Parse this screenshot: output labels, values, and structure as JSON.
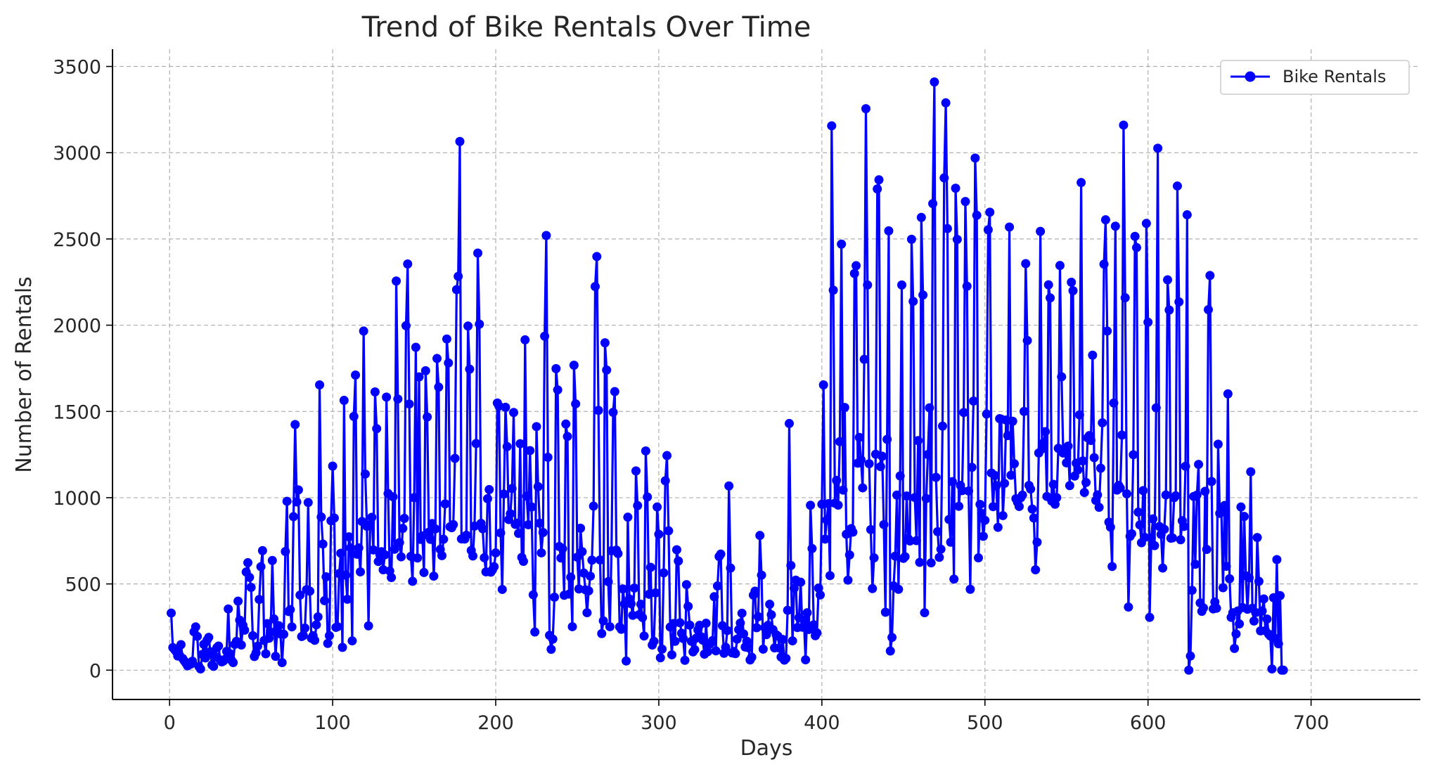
{
  "chart_data": {
    "type": "line",
    "title": "Trend of Bike Rentals Over Time",
    "xlabel": "Days",
    "ylabel": "Number of Rentals",
    "xlim": [
      -35,
      767
    ],
    "ylim": [
      -170,
      3600
    ],
    "xticks": [
      0,
      100,
      200,
      300,
      400,
      500,
      600,
      700
    ],
    "yticks": [
      0,
      500,
      1000,
      1500,
      2000,
      2500,
      3000,
      3500
    ],
    "grid": true,
    "legend_position": "top-right",
    "color": "#0000ff",
    "series": [
      {
        "name": "Bike Rentals",
        "x_start": 1,
        "x_step": 1,
        "values": [
          331,
          131,
          120,
          108,
          82,
          88,
          148,
          68,
          54,
          41,
          25,
          31,
          35,
          52,
          222,
          251,
          196,
          21,
          7,
          91,
          150,
          71,
          174,
          190,
          107,
          30,
          22,
          78,
          130,
          140,
          60,
          48,
          53,
          63,
          109,
          355,
          96,
          57,
          44,
          150,
          167,
          400,
          290,
          146,
          260,
          232,
          569,
          623,
          538,
          480,
          200,
          79,
          100,
          139,
          410,
          600,
          693,
          172,
          95,
          270,
          185,
          220,
          636,
          297,
          80,
          236,
          258,
          210,
          44,
          208,
          688,
          979,
          340,
          351,
          251,
          890,
          1424,
          975,
          1045,
          435,
          195,
          201,
          244,
          467,
          972,
          458,
          185,
          200,
          173,
          263,
          309,
          1654,
          888,
          731,
          403,
          541,
          155,
          200,
          866,
          1183,
          882,
          248,
          252,
          560,
          678,
          132,
          1564,
          551,
          411,
          773,
          709,
          170,
          1471,
          1711,
          672,
          709,
          570,
          862,
          1966,
          1137,
          834,
          257,
          844,
          886,
          697,
          1613,
          1400,
          630,
          668,
          687,
          582,
          669,
          1583,
          1024,
          575,
          537,
          1005,
          701,
          2256,
          1572,
          740,
          657,
          822,
          880,
          1997,
          2355,
          1543,
          660,
          515,
          1000,
          1872,
          650,
          1700,
          758,
          778,
          566,
          1736,
          1468,
          800,
          758,
          850,
          545,
          819,
          1807,
          1641,
          700,
          664,
          759,
          964,
          1920,
          1781,
          831,
          826,
          844,
          1228,
          2206,
          2283,
          3065,
          761,
          762,
          760,
          782,
          1995,
          1745,
          694,
          662,
          835,
          1314,
          2418,
          2006,
          851,
          820,
          652,
          570,
          994,
          1047,
          568,
          582,
          600,
          680,
          1549,
          1531,
          796,
          468,
          1021,
          1524,
          1296,
          873,
          907,
          1053,
          1494,
          845,
          852,
          793,
          1313,
          654,
          631,
          1915,
          1009,
          843,
          1273,
          946,
          437,
          221,
          1412,
          1064,
          852,
          680,
          798,
          1936,
          2520,
          1234,
          202,
          121,
          180,
          423,
          1748,
          1625,
          717,
          650,
          704,
          434,
          1427,
          1355,
          441,
          539,
          252,
          1768,
          1544,
          655,
          471,
          823,
          687,
          563,
          466,
          333,
          460,
          545,
          638,
          951,
          2224,
          2398,
          1506,
          639,
          212,
          286,
          1898,
          1740,
          513,
          252,
          692,
          1495,
          1615,
          696,
          676,
          251,
          237,
          471,
          384,
          53,
          887,
          413,
          385,
          318,
          476,
          1155,
          954,
          322,
          382,
          305,
          198,
          1271,
          1004,
          440,
          596,
          146,
          167,
          448,
          946,
          788,
          72,
          122,
          564,
          1098,
          1244,
          808,
          250,
          89,
          270,
          167,
          698,
          633,
          275,
          214,
          183,
          57,
          496,
          370,
          261,
          167,
          106,
          119,
          186,
          233,
          260,
          194,
          174,
          93,
          272,
          107,
          150,
          158,
          172,
          426,
          112,
          488,
          659,
          673,
          258,
          98,
          133,
          230,
          1068,
          592,
          100,
          108,
          96,
          180,
          235,
          273,
          330,
          210,
          134,
          168,
          130,
          59,
          75,
          435,
          458,
          246,
          310,
          781,
          551,
          122,
          247,
          206,
          260,
          382,
          321,
          235,
          129,
          205,
          198,
          128,
          76,
          178,
          58,
          68,
          347,
          1430,
          607,
          170,
          475,
          522,
          247,
          305,
          510,
          249,
          291,
          60,
          333,
          236,
          956,
          705,
          263,
          200,
          216,
          476,
          436,
          962,
          1654,
          760,
          870,
          965,
          548,
          3156,
          2203,
          968,
          1100,
          957,
          1325,
          2470,
          1044,
          1523,
          788,
          522,
          668,
          821,
          800,
          2300,
          2345,
          1200,
          1349,
          1220,
          1057,
          1802,
          3255,
          2233,
          1197,
          815,
          473,
          651,
          1252,
          2790,
          2843,
          1180,
          1240,
          844,
          336,
          1338,
          2547,
          111,
          190,
          488,
          661,
          1015,
          469,
          1126,
          2233,
          648,
          658,
          1010,
          762,
          749,
          2498,
          2138,
          1001,
          751,
          1331,
          625,
          2625,
          2175,
          333,
          995,
          1250,
          1521,
          622,
          2705,
          3410,
          1118,
          803,
          654,
          701,
          1415,
          2854,
          3289,
          2560,
          874,
          742,
          1093,
          528,
          2794,
          2497,
          950,
          1071,
          1041,
          1494,
          2717,
          2226,
          1039,
          469,
          1176,
          1560,
          2969,
          2637,
          651,
          961,
          909,
          776,
          869,
          1485,
          2553,
          2655,
          1143,
          948,
          1129,
          1069,
          828,
          1458,
          1455,
          896,
          1083,
          1450,
          1360,
          2569,
          1130,
          1443,
          1197,
          994,
          973,
          949,
          1000,
          1015,
          1500,
          2357,
          1911,
          1071,
          1050,
          934,
          882,
          582,
          742,
          1259,
          2544,
          1283,
          1319,
          1383,
          1007,
          2234,
          2158,
          980,
          1077,
          962,
          1000,
          1286,
          2346,
          1701,
          1259,
          1274,
          1202,
          1299,
          1070,
          2249,
          2200,
          1125,
          1200,
          1161,
          1480,
          2827,
          1213,
          1030,
          1088,
          1347,
          1360,
          1332,
          1826,
          1232,
          984,
          1016,
          944,
          1171,
          1434,
          2354,
          2611,
          1966,
          858,
          829,
          601,
          1549,
          2574,
          1044,
          1071,
          1056,
          1363,
          3160,
          2159,
          1022,
          366,
          776,
          791,
          1249,
          2515,
          2450,
          916,
          842,
          739,
          1041,
          770,
          2590,
          2017,
          306,
          766,
          877,
          722,
          1521,
          3026,
          833,
          787,
          592,
          817,
          1016,
          2263,
          2088,
          765,
          767,
          1000,
          1011,
          2807,
          2135,
          756,
          866,
          833,
          1182,
          2640,
          0,
          82,
          463,
          1007,
          614,
          1015,
          1193,
          390,
          341,
          361,
          1037,
          700,
          2090,
          2288,
          1094,
          355,
          395,
          359,
          1310,
          909,
          917,
          478,
          955,
          602,
          1602,
          530,
          306,
          333,
          126,
          210,
          343,
          268,
          946,
          363,
          891,
          547,
          353,
          535,
          1150,
          359,
          285,
          334,
          769,
          515,
          228,
          343,
          413,
          229,
          296,
          209,
          198,
          7,
          420,
          184,
          641,
          153,
          432,
          0,
          0
        ]
      }
    ]
  }
}
